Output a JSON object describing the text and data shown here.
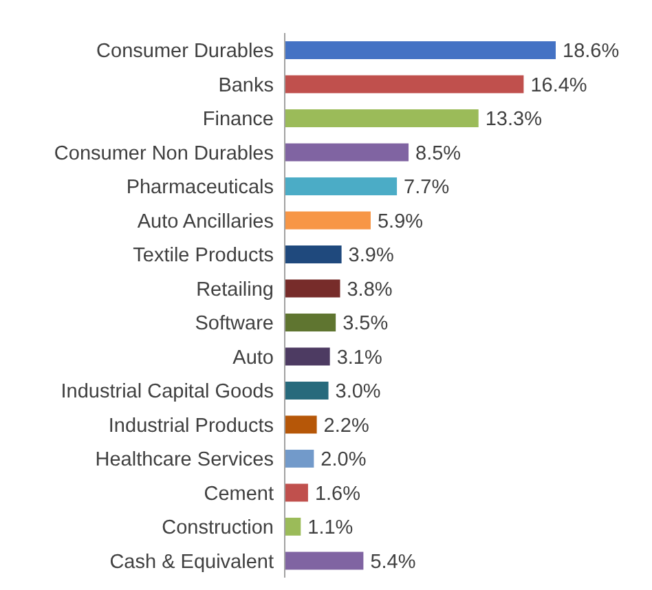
{
  "chart_data": {
    "type": "bar",
    "orientation": "horizontal",
    "categories": [
      "Consumer Durables",
      "Banks",
      "Finance",
      "Consumer Non Durables",
      "Pharmaceuticals",
      "Auto Ancillaries",
      "Textile Products",
      "Retailing",
      "Software",
      "Auto",
      "Industrial Capital Goods",
      "Industrial Products",
      "Healthcare Services",
      "Cement",
      "Construction",
      "Cash & Equivalent"
    ],
    "values": [
      18.6,
      16.4,
      13.3,
      8.5,
      7.7,
      5.9,
      3.9,
      3.8,
      3.5,
      3.1,
      3.0,
      2.2,
      2.0,
      1.6,
      1.1,
      5.4
    ],
    "value_labels": [
      "18.6%",
      "16.4%",
      "13.3%",
      "8.5%",
      "7.7%",
      "5.9%",
      "3.9%",
      "3.8%",
      "3.5%",
      "3.1%",
      "3.0%",
      "2.2%",
      "2.0%",
      "1.6%",
      "1.1%",
      "5.4%"
    ],
    "colors": [
      "#4472c4",
      "#c0504d",
      "#9bbb59",
      "#8064a2",
      "#4bacc6",
      "#f79646",
      "#1f497d",
      "#772c2a",
      "#5f7530",
      "#4d3b62",
      "#276a7c",
      "#b65708",
      "#729aca",
      "#c0504d",
      "#9bbb59",
      "#8064a2"
    ]
  }
}
